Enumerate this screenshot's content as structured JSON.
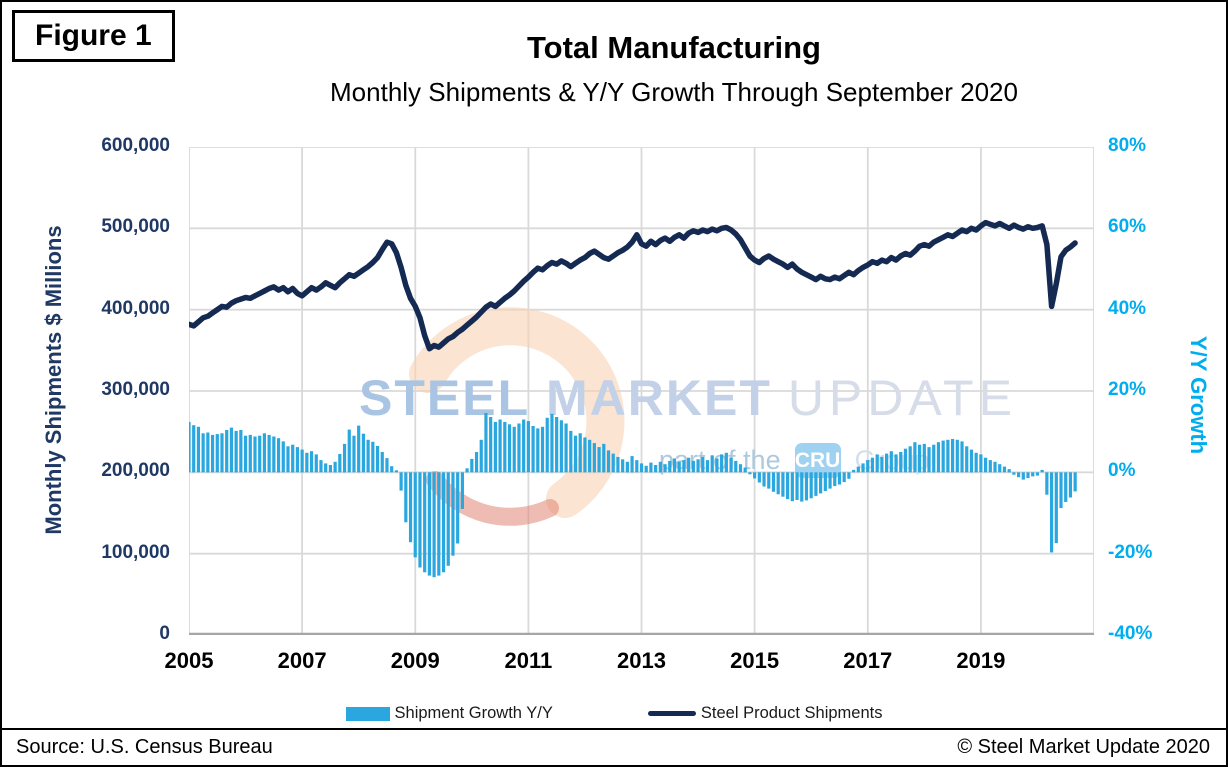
{
  "figure_label": "Figure 1",
  "header": {
    "title": "Total Manufacturing",
    "subtitle": "Monthly Shipments & Y/Y Growth Through September 2020"
  },
  "colors": {
    "bar": "#2aa7df",
    "line": "#152a52",
    "left_axis_text": "#1f3864",
    "right_axis_text": "#00adee",
    "gridline": "#d9d9d9",
    "axis_line": "#a6a6a6"
  },
  "watermark": {
    "steel": "STEEL",
    "market": "MARKET",
    "update": "UPDATE",
    "part_of_the": "part of the",
    "cru": "CRU",
    "group": "Group"
  },
  "legend": [
    {
      "label": "Shipment Growth Y/Y",
      "type": "bar"
    },
    {
      "label": "Steel Product Shipments",
      "type": "line"
    }
  ],
  "footer": {
    "source": "Source: U.S. Census Bureau",
    "copyright": "© Steel Market Update 2020"
  },
  "chart_data": {
    "type": "combo",
    "x_start": "2005-01",
    "x_end": "2020-09",
    "x_tick_labels": [
      "2005",
      "2007",
      "2009",
      "2011",
      "2013",
      "2015",
      "2017",
      "2019"
    ],
    "grid": true,
    "left_axis": {
      "label": "Monthly Shipments $ Millions",
      "min": 0,
      "max": 600000,
      "ticks": [
        "0",
        "100,000",
        "200,000",
        "300,000",
        "400,000",
        "500,000",
        "600,000"
      ]
    },
    "right_axis": {
      "label": "Y/Y Growth",
      "min": -40,
      "max": 80,
      "ticks": [
        "-40%",
        "-20%",
        "0%",
        "20%",
        "40%",
        "60%",
        "80%"
      ]
    },
    "series": [
      {
        "name": "Shipment Growth Y/Y",
        "type": "bar",
        "axis": "right",
        "unit": "%",
        "values": [
          12.4,
          11.6,
          11.2,
          9.6,
          9.8,
          9.2,
          9.4,
          9.6,
          10.4,
          11.0,
          10.2,
          10.4,
          9.0,
          9.2,
          8.8,
          9.0,
          9.6,
          9.2,
          8.8,
          8.4,
          7.6,
          6.4,
          6.8,
          6.2,
          5.6,
          4.8,
          5.2,
          4.4,
          3.0,
          2.2,
          1.8,
          2.6,
          4.5,
          7.0,
          10.5,
          9.0,
          11.5,
          9.5,
          8.0,
          7.5,
          6.5,
          5.0,
          3.5,
          1.5,
          0.5,
          -4.5,
          -12.3,
          -17.2,
          -20.9,
          -23.4,
          -24.6,
          -25.4,
          -25.8,
          -25.4,
          -24.6,
          -23.0,
          -20.5,
          -17.5,
          -9.0,
          1.0,
          3.3,
          5.0,
          8.0,
          14.6,
          13.6,
          12.4,
          13.0,
          12.4,
          11.8,
          11.2,
          12.0,
          13.0,
          12.6,
          11.4,
          10.8,
          11.2,
          13.4,
          14.4,
          13.6,
          12.8,
          12.0,
          10.2,
          9.0,
          9.6,
          8.6,
          8.0,
          7.2,
          6.2,
          7.0,
          5.4,
          4.6,
          3.8,
          3.2,
          2.6,
          4.0,
          3.0,
          2.2,
          1.6,
          2.4,
          1.8,
          2.6,
          2.0,
          2.8,
          3.4,
          2.6,
          3.0,
          3.6,
          2.8,
          3.2,
          3.8,
          3.0,
          4.2,
          3.4,
          4.4,
          4.8,
          3.6,
          2.8,
          2.0,
          1.2,
          -0.5,
          -1.5,
          -2.5,
          -3.5,
          -4.0,
          -4.8,
          -5.4,
          -6.0,
          -6.6,
          -7.1,
          -6.8,
          -7.2,
          -6.9,
          -6.4,
          -5.8,
          -5.2,
          -4.6,
          -4.0,
          -3.4,
          -3.0,
          -2.4,
          -1.6,
          0.6,
          1.4,
          2.2,
          3.0,
          3.6,
          4.4,
          3.8,
          4.6,
          5.2,
          4.4,
          5.0,
          5.8,
          6.4,
          7.4,
          6.8,
          7.0,
          6.2,
          6.8,
          7.4,
          7.8,
          8.0,
          8.2,
          8.0,
          7.6,
          6.4,
          5.6,
          4.8,
          4.4,
          3.6,
          3.0,
          2.6,
          2.0,
          1.4,
          0.8,
          -0.6,
          -1.2,
          -1.8,
          -1.4,
          -1.0,
          -0.8,
          0.6,
          -5.5,
          -19.7,
          -17.4,
          -8.8,
          -7.3,
          -6.2,
          -4.7
        ]
      },
      {
        "name": "Steel Product Shipments",
        "type": "line",
        "axis": "left",
        "unit": "$M",
        "values": [
          382000,
          380000,
          385000,
          390000,
          392000,
          396000,
          400000,
          404000,
          403000,
          408000,
          411000,
          413000,
          415000,
          414000,
          417000,
          420000,
          423000,
          426000,
          428000,
          424000,
          427000,
          422000,
          426000,
          420000,
          417000,
          422000,
          427000,
          424000,
          428000,
          433000,
          430000,
          427000,
          433000,
          438000,
          443000,
          441000,
          445000,
          449000,
          453000,
          458000,
          464000,
          474000,
          483000,
          481000,
          470000,
          452000,
          430000,
          414000,
          404000,
          390000,
          368000,
          352000,
          356000,
          354000,
          359000,
          364000,
          367000,
          372000,
          376000,
          381000,
          386000,
          391000,
          397000,
          403000,
          407000,
          404000,
          409000,
          414000,
          418000,
          423000,
          429000,
          435000,
          440000,
          446000,
          451000,
          449000,
          454000,
          458000,
          456000,
          460000,
          457000,
          453000,
          457000,
          461000,
          464000,
          469000,
          472000,
          468000,
          464000,
          462000,
          466000,
          470000,
          473000,
          477000,
          483000,
          492000,
          481000,
          478000,
          484000,
          480000,
          485000,
          488000,
          484000,
          489000,
          492000,
          488000,
          494000,
          497000,
          495000,
          498000,
          496000,
          499000,
          497000,
          500000,
          501000,
          498000,
          493000,
          486000,
          476000,
          466000,
          461000,
          458000,
          463000,
          466000,
          462000,
          459000,
          456000,
          452000,
          456000,
          450000,
          446000,
          443000,
          440000,
          437000,
          441000,
          438000,
          437000,
          440000,
          438000,
          442000,
          446000,
          443000,
          448000,
          452000,
          455000,
          459000,
          457000,
          461000,
          459000,
          464000,
          461000,
          466000,
          469000,
          467000,
          472000,
          478000,
          480000,
          478000,
          483000,
          486000,
          489000,
          492000,
          490000,
          494000,
          498000,
          496000,
          500000,
          498000,
          503000,
          507000,
          505000,
          503000,
          506000,
          503000,
          500000,
          504000,
          501000,
          499000,
          502000,
          500000,
          501000,
          503000,
          480000,
          404000,
          432000,
          465000,
          473000,
          477000,
          482000
        ]
      }
    ]
  }
}
